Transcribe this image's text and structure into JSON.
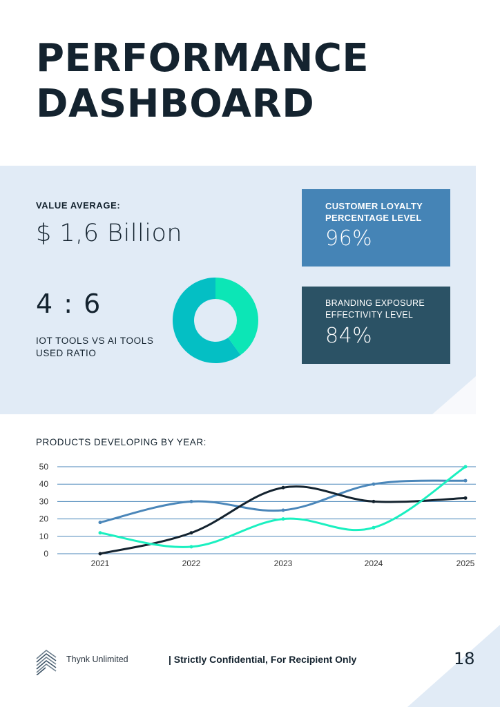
{
  "header": {
    "title_line1": "PERFORMANCE",
    "title_line2": "DASHBOARD"
  },
  "summary": {
    "value_average_label": "VALUE AVERAGE:",
    "value_average": "$ 1,6 Billion",
    "ratio": "4 : 6",
    "ratio_label_line1": "IOT TOOLS VS AI TOOLS",
    "ratio_label_line2": "USED RATIO"
  },
  "kpis": [
    {
      "label_line1": "CUSTOMER LOYALTY",
      "label_line2": "PERCENTAGE LEVEL",
      "value": "96%"
    },
    {
      "label_line1": "BRANDING EXPOSURE",
      "label_line2": "EFFECTIVITY LEVEL",
      "value": "84%"
    }
  ],
  "colors": {
    "title": "#14232f",
    "panel": "#e1ebf6",
    "kpi_blue": "#4584b6",
    "kpi_dark": "#2b5265",
    "donut_green": "#0ce6b6",
    "donut_teal": "#04bfc4",
    "series_blue": "#4a86b9",
    "series_dark": "#14232f",
    "series_green": "#1af0c0",
    "gridline": "#4a86b9"
  },
  "chart_data": [
    {
      "type": "pie",
      "variant": "donut",
      "title": "",
      "categories": [
        "IOT TOOLS",
        "AI TOOLS"
      ],
      "values": [
        4,
        6
      ],
      "colors": [
        "#0ce6b6",
        "#04bfc4"
      ]
    },
    {
      "type": "line",
      "title": "PRODUCTS DEVELOPING BY YEAR:",
      "xlabel": "",
      "ylabel": "",
      "categories": [
        "2021",
        "2022",
        "2023",
        "2024",
        "2025"
      ],
      "ylim": [
        0,
        50
      ],
      "yticks": [
        "0",
        "10",
        "20",
        "30",
        "40",
        "50"
      ],
      "grid": true,
      "smooth": true,
      "series": [
        {
          "name": "series-blue",
          "color": "#4a86b9",
          "values": [
            18,
            30,
            25,
            40,
            42
          ]
        },
        {
          "name": "series-dark",
          "color": "#14232f",
          "values": [
            0,
            12,
            38,
            30,
            32
          ]
        },
        {
          "name": "series-green",
          "color": "#1af0c0",
          "values": [
            12,
            4,
            20,
            15,
            50
          ]
        }
      ]
    }
  ],
  "footer": {
    "brand": "Thynk Unlimited",
    "confidential": "| Strictly Confidential, For Recipient Only",
    "page_number": "18"
  }
}
